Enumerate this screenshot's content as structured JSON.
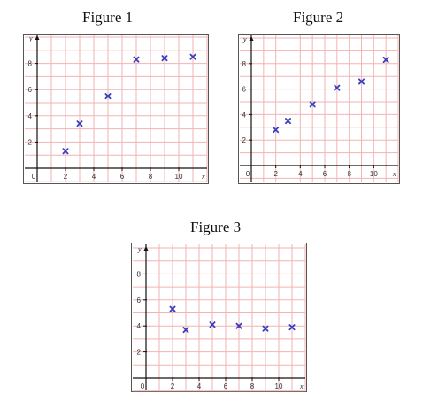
{
  "style": {
    "grid_color": "#f2b3b3",
    "axis_color": "#111111",
    "point_color": "#3a3fbf",
    "frame_color": "#555555"
  },
  "chart_data": [
    {
      "type": "scatter",
      "title": "Figure 1",
      "xlabel": "x",
      "ylabel": "y",
      "xlim": [
        0,
        12
      ],
      "ylim": [
        0,
        10
      ],
      "grid": true,
      "x_ticks": [
        0,
        2,
        4,
        6,
        8,
        10
      ],
      "y_ticks": [
        2,
        4,
        6,
        8
      ],
      "points": [
        {
          "x": 2,
          "y": 1.3
        },
        {
          "x": 3,
          "y": 3.4
        },
        {
          "x": 5,
          "y": 5.5
        },
        {
          "x": 7,
          "y": 8.3
        },
        {
          "x": 9,
          "y": 8.4
        },
        {
          "x": 11,
          "y": 8.5
        }
      ]
    },
    {
      "type": "scatter",
      "title": "Figure 2",
      "xlabel": "x",
      "ylabel": "y",
      "xlim": [
        0,
        12
      ],
      "ylim": [
        0,
        10
      ],
      "grid": true,
      "x_ticks": [
        0,
        2,
        4,
        6,
        8,
        10
      ],
      "y_ticks": [
        2,
        4,
        6,
        8
      ],
      "points": [
        {
          "x": 2,
          "y": 2.8
        },
        {
          "x": 3,
          "y": 3.5
        },
        {
          "x": 5,
          "y": 4.8
        },
        {
          "x": 7,
          "y": 6.1
        },
        {
          "x": 9,
          "y": 6.6
        },
        {
          "x": 11,
          "y": 8.3
        }
      ]
    },
    {
      "type": "scatter",
      "title": "Figure 3",
      "xlabel": "x",
      "ylabel": "y",
      "xlim": [
        0,
        12
      ],
      "ylim": [
        0,
        10
      ],
      "grid": true,
      "x_ticks": [
        0,
        2,
        4,
        6,
        8,
        10
      ],
      "y_ticks": [
        2,
        4,
        6,
        8
      ],
      "points": [
        {
          "x": 2,
          "y": 5.3
        },
        {
          "x": 3,
          "y": 3.7
        },
        {
          "x": 5,
          "y": 4.1
        },
        {
          "x": 7,
          "y": 4.0
        },
        {
          "x": 9,
          "y": 3.8
        },
        {
          "x": 11,
          "y": 3.9
        }
      ]
    }
  ]
}
